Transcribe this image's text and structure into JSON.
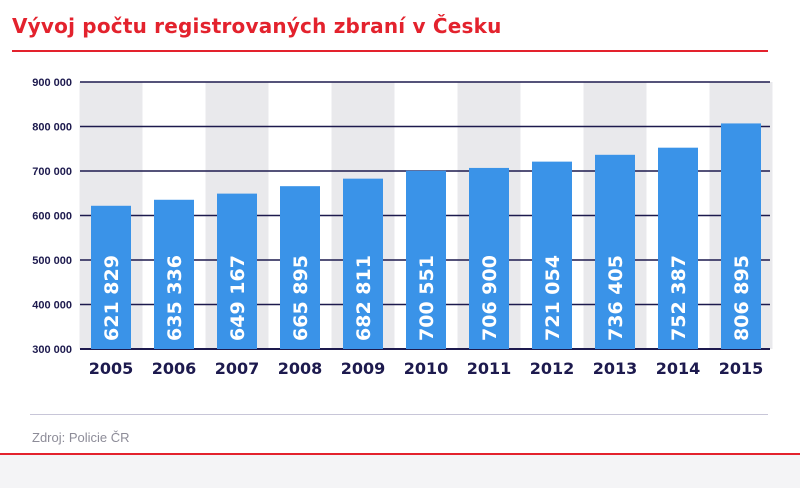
{
  "header": {
    "title": "Vývoj počtu registrovaných zbraní v Česku"
  },
  "footer": {
    "source": "Zdroj: Policie ČR"
  },
  "colors": {
    "accent": "#e3222d",
    "bar": "#3a93e8",
    "gridline": "#1d1a4e",
    "axis_text": "#1d1a4e",
    "band": "#e9e9ec",
    "source_text": "#8d8c98"
  },
  "chart_data": {
    "type": "bar",
    "title": "Vývoj počtu registrovaných zbraní v Česku",
    "xlabel": "",
    "ylabel": "",
    "categories": [
      "2005",
      "2006",
      "2007",
      "2008",
      "2009",
      "2010",
      "2011",
      "2012",
      "2013",
      "2014",
      "2015"
    ],
    "values": [
      621829,
      635336,
      649167,
      665895,
      682811,
      700551,
      706900,
      721054,
      736405,
      752387,
      806895
    ],
    "value_labels": [
      "621 829",
      "635 336",
      "649 167",
      "665 895",
      "682 811",
      "700 551",
      "706 900",
      "721 054",
      "736 405",
      "752 387",
      "806 895"
    ],
    "ylim": [
      300000,
      900000
    ],
    "yticks": [
      300000,
      400000,
      500000,
      600000,
      700000,
      800000,
      900000
    ],
    "ytick_labels": [
      "300 000",
      "400 000",
      "500 000",
      "600 000",
      "700 000",
      "800 000",
      "900 000"
    ],
    "grid": true,
    "legend": "none",
    "alternating_column_bands": true
  }
}
